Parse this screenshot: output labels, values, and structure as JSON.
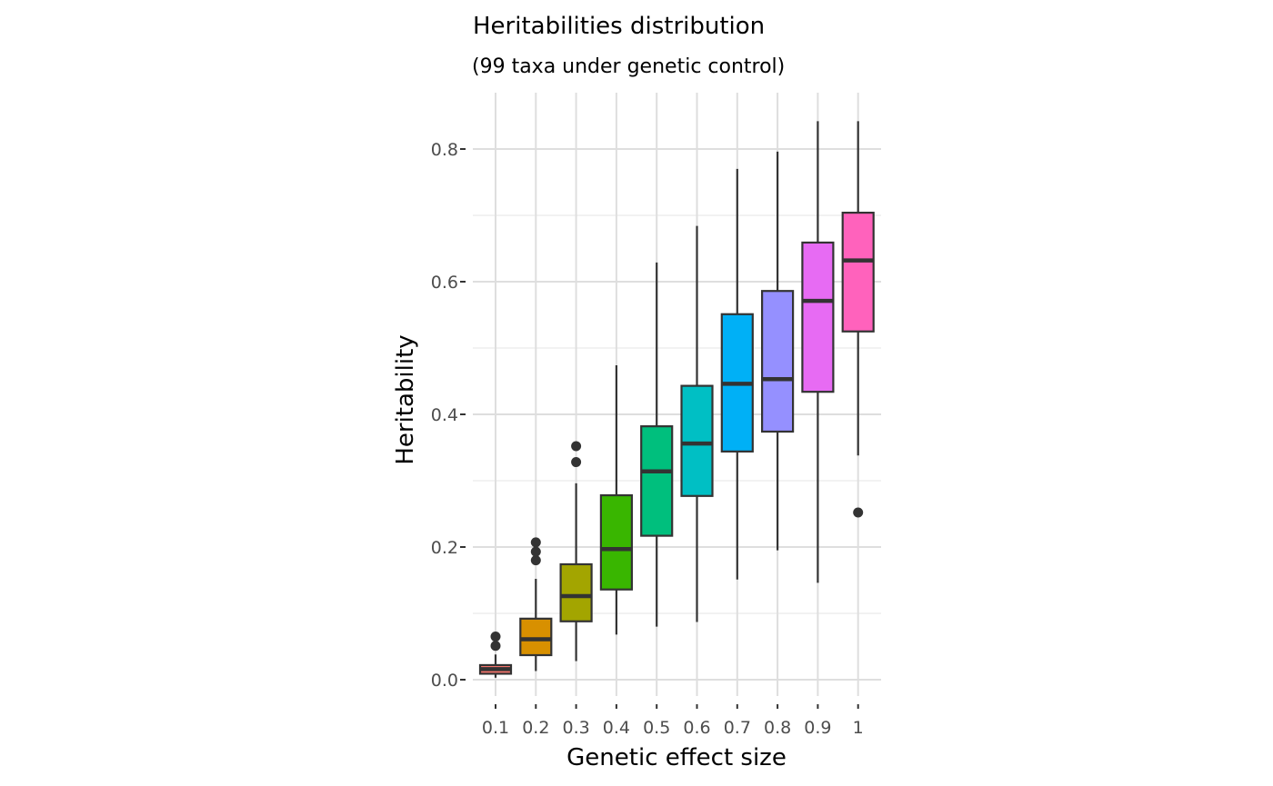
{
  "chart_data": {
    "type": "box",
    "title": "Heritabilities distribution",
    "subtitle": "(99 taxa under genetic control)",
    "xlabel": "Genetic effect size",
    "ylabel": "Heritability",
    "ylim": [
      -0.02,
      0.86
    ],
    "y_ticks": [
      0.0,
      0.2,
      0.4,
      0.6,
      0.8
    ],
    "y_tick_labels": [
      "0.0",
      "0.2",
      "0.4",
      "0.6",
      "0.8"
    ],
    "grid": true,
    "legend": "none",
    "categories": [
      "0.1",
      "0.2",
      "0.3",
      "0.4",
      "0.5",
      "0.6",
      "0.7",
      "0.8",
      "0.9",
      "1"
    ],
    "boxes": [
      {
        "category": "0.1",
        "whisker_low": 0.003,
        "q1": 0.009,
        "median": 0.016,
        "q3": 0.022,
        "whisker_high": 0.038,
        "outliers": [
          0.051,
          0.065
        ],
        "color": "#F8766D"
      },
      {
        "category": "0.2",
        "whisker_low": 0.013,
        "q1": 0.037,
        "median": 0.061,
        "q3": 0.092,
        "whisker_high": 0.152,
        "outliers": [
          0.18,
          0.193,
          0.207
        ],
        "color": "#D89000"
      },
      {
        "category": "0.3",
        "whisker_low": 0.028,
        "q1": 0.088,
        "median": 0.126,
        "q3": 0.174,
        "whisker_high": 0.296,
        "outliers": [
          0.328,
          0.352
        ],
        "color": "#A3A500"
      },
      {
        "category": "0.4",
        "whisker_low": 0.068,
        "q1": 0.136,
        "median": 0.197,
        "q3": 0.278,
        "whisker_high": 0.474,
        "outliers": [],
        "color": "#39B600"
      },
      {
        "category": "0.5",
        "whisker_low": 0.08,
        "q1": 0.217,
        "median": 0.314,
        "q3": 0.382,
        "whisker_high": 0.629,
        "outliers": [],
        "color": "#00BF7D"
      },
      {
        "category": "0.6",
        "whisker_low": 0.087,
        "q1": 0.277,
        "median": 0.356,
        "q3": 0.443,
        "whisker_high": 0.684,
        "outliers": [],
        "color": "#00BFC4"
      },
      {
        "category": "0.7",
        "whisker_low": 0.151,
        "q1": 0.344,
        "median": 0.446,
        "q3": 0.551,
        "whisker_high": 0.77,
        "outliers": [],
        "color": "#00B0F6"
      },
      {
        "category": "0.8",
        "whisker_low": 0.195,
        "q1": 0.374,
        "median": 0.453,
        "q3": 0.586,
        "whisker_high": 0.796,
        "outliers": [],
        "color": "#9590FF"
      },
      {
        "category": "0.9",
        "whisker_low": 0.146,
        "q1": 0.434,
        "median": 0.571,
        "q3": 0.659,
        "whisker_high": 0.842,
        "outliers": [],
        "color": "#E76BF3"
      },
      {
        "category": "1",
        "whisker_low": 0.338,
        "q1": 0.525,
        "median": 0.632,
        "q3": 0.704,
        "whisker_high": 0.842,
        "outliers": [
          0.252
        ],
        "color": "#FF62BC"
      }
    ]
  }
}
